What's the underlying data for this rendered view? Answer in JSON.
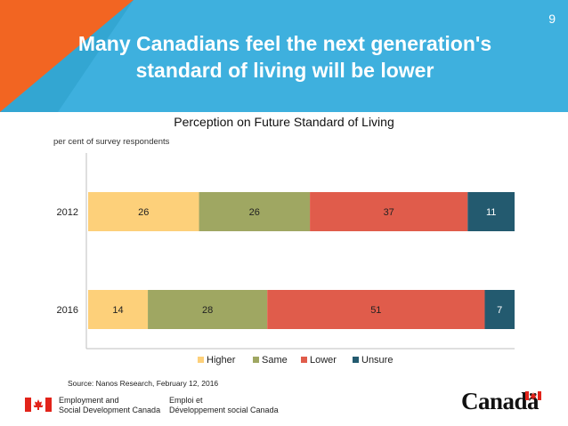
{
  "slide": {
    "page_number": "9",
    "title_line1": "Many Canadians feel the next generation's",
    "title_line2": "standard of living will be lower",
    "colors": {
      "banner": "#3eb0de",
      "accent_orange": "#f26522",
      "accent_teal": "#2a9fc9"
    }
  },
  "chart_data": {
    "type": "bar",
    "orientation": "horizontal",
    "stacked": true,
    "title": "Perception on Future Standard of Living",
    "ylabel": "per cent of survey respondents",
    "categories": [
      "2012",
      "2016"
    ],
    "series": [
      {
        "name": "Higher",
        "color": "#fdd07a",
        "values": [
          26,
          14
        ]
      },
      {
        "name": "Same",
        "color": "#9fa762",
        "values": [
          26,
          28
        ]
      },
      {
        "name": "Lower",
        "color": "#e05c4b",
        "values": [
          37,
          51
        ]
      },
      {
        "name": "Unsure",
        "color": "#235a6f",
        "values": [
          11,
          7
        ]
      }
    ],
    "xlim": [
      0,
      100
    ],
    "legend": "bottom-center",
    "grid": false
  },
  "footer": {
    "source": "Source: Nanos Research, February 12, 2016",
    "dept_en": "Employment and\nSocial Development Canada",
    "dept_fr": "Emploi et\nDéveloppement social Canada",
    "wordmark": "Canadä"
  }
}
